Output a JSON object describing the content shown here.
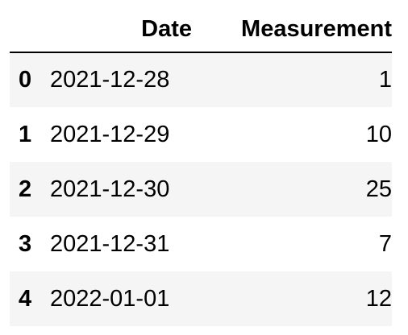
{
  "table": {
    "columns": {
      "index": "",
      "date": "Date",
      "measurement": "Measurement"
    },
    "rows": [
      {
        "index": "0",
        "date": "2021-12-28",
        "measurement": "1"
      },
      {
        "index": "1",
        "date": "2021-12-29",
        "measurement": "10"
      },
      {
        "index": "2",
        "date": "2021-12-30",
        "measurement": "25"
      },
      {
        "index": "3",
        "date": "2021-12-31",
        "measurement": "7"
      },
      {
        "index": "4",
        "date": "2022-01-01",
        "measurement": "12"
      }
    ]
  },
  "colors": {
    "striped_row": "#f5f5f5",
    "header_rule": "#000000",
    "text": "#000000"
  }
}
